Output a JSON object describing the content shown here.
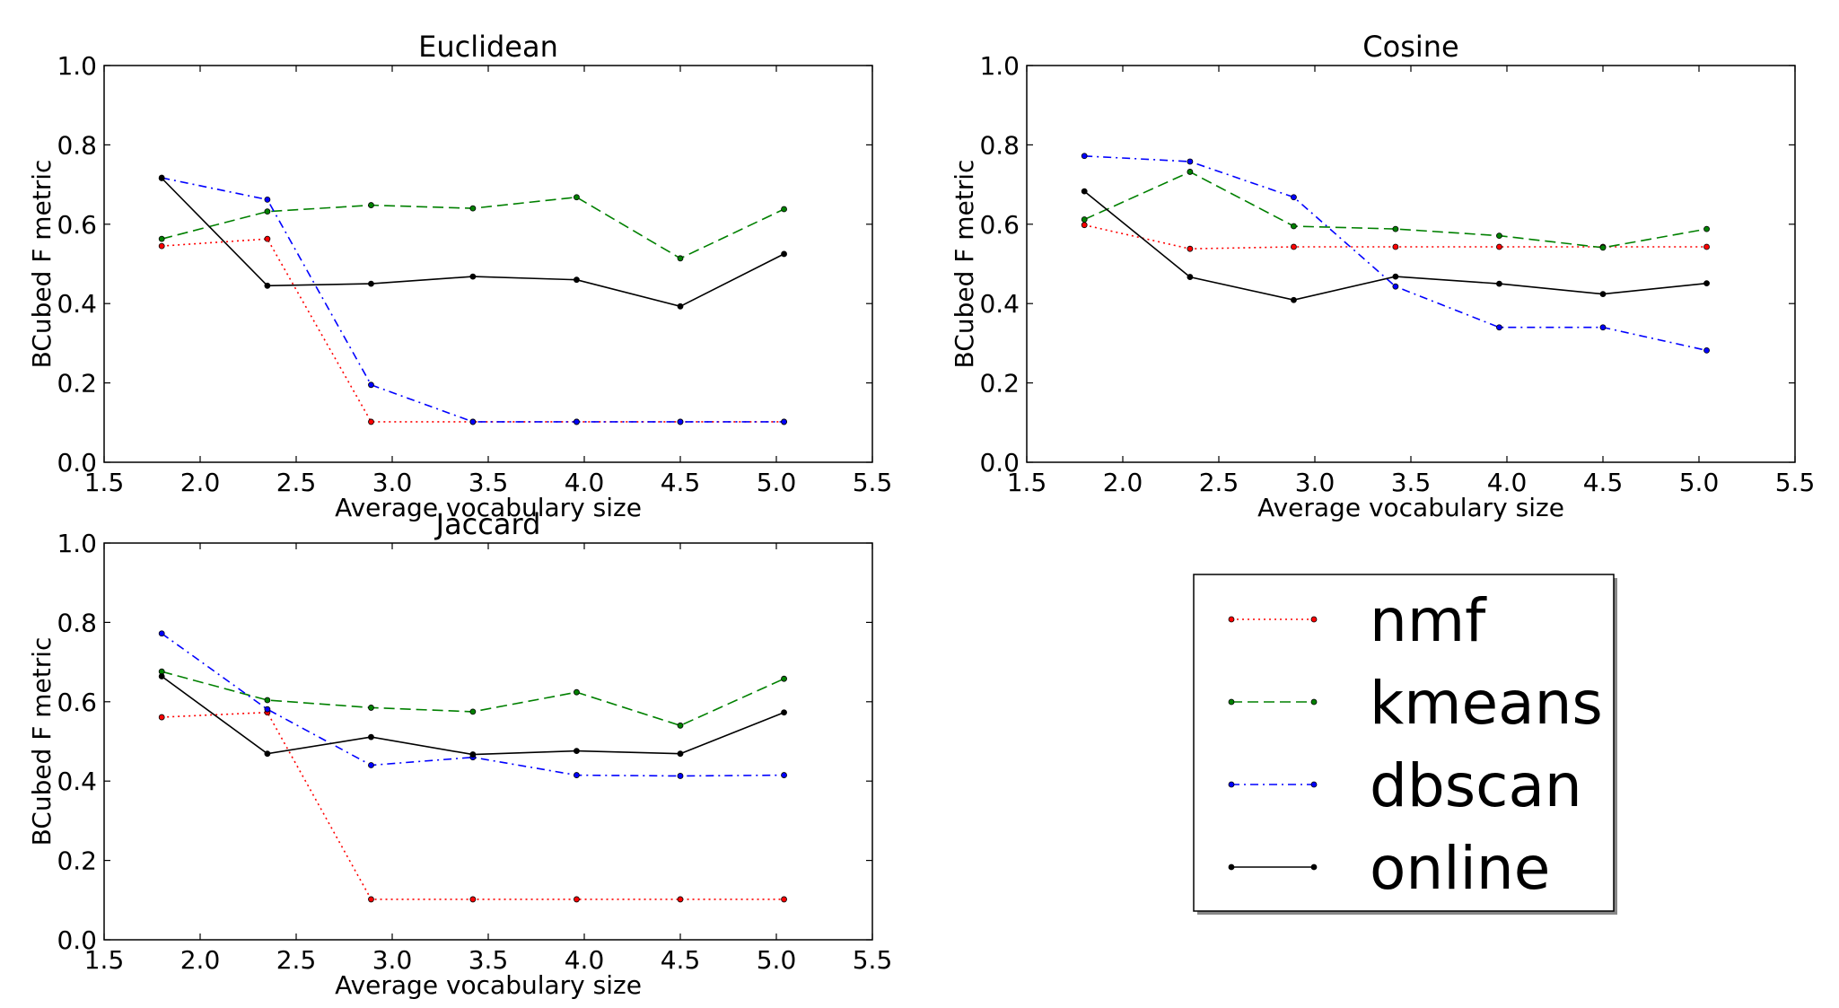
{
  "chart_data": [
    {
      "type": "line",
      "title": "Euclidean",
      "xlabel": "Average vocabulary size",
      "ylabel": "BCubed F metric",
      "xlim": [
        1.5,
        5.5
      ],
      "ylim": [
        0.0,
        1.0
      ],
      "xticks": [
        "1.5",
        "2.0",
        "2.5",
        "3.0",
        "3.5",
        "4.0",
        "4.5",
        "5.0",
        "5.5"
      ],
      "yticks": [
        "0.0",
        "0.2",
        "0.4",
        "0.6",
        "0.8",
        "1.0"
      ],
      "x": [
        1.8,
        2.35,
        2.89,
        3.42,
        3.96,
        4.5,
        5.04
      ],
      "series": [
        {
          "name": "nmf",
          "values": [
            0.545,
            0.563,
            0.102,
            0.102,
            0.102,
            0.102,
            0.102
          ]
        },
        {
          "name": "kmeans",
          "values": [
            0.563,
            0.632,
            0.648,
            0.64,
            0.668,
            0.514,
            0.638
          ]
        },
        {
          "name": "dbscan",
          "values": [
            0.717,
            0.662,
            0.195,
            0.102,
            0.102,
            0.102,
            0.102
          ]
        },
        {
          "name": "online",
          "values": [
            0.716,
            0.445,
            0.45,
            0.468,
            0.46,
            0.393,
            0.525
          ]
        }
      ]
    },
    {
      "type": "line",
      "title": "Cosine",
      "xlabel": "Average vocabulary size",
      "ylabel": "BCubed F metric",
      "xlim": [
        1.5,
        5.5
      ],
      "ylim": [
        0.0,
        1.0
      ],
      "xticks": [
        "1.5",
        "2.0",
        "2.5",
        "3.0",
        "3.5",
        "4.0",
        "4.5",
        "5.0",
        "5.5"
      ],
      "yticks": [
        "0.0",
        "0.2",
        "0.4",
        "0.6",
        "0.8",
        "1.0"
      ],
      "x": [
        1.8,
        2.35,
        2.89,
        3.42,
        3.96,
        4.5,
        5.04
      ],
      "series": [
        {
          "name": "nmf",
          "values": [
            0.598,
            0.538,
            0.543,
            0.543,
            0.543,
            0.543,
            0.543
          ]
        },
        {
          "name": "kmeans",
          "values": [
            0.612,
            0.732,
            0.595,
            0.588,
            0.571,
            0.541,
            0.588
          ]
        },
        {
          "name": "dbscan",
          "values": [
            0.772,
            0.758,
            0.668,
            0.443,
            0.34,
            0.34,
            0.282
          ]
        },
        {
          "name": "online",
          "values": [
            0.683,
            0.467,
            0.409,
            0.468,
            0.45,
            0.424,
            0.451
          ]
        }
      ]
    },
    {
      "type": "line",
      "title": "Jaccard",
      "xlabel": "Average vocabulary size",
      "ylabel": "BCubed F metric",
      "xlim": [
        1.5,
        5.5
      ],
      "ylim": [
        0.0,
        1.0
      ],
      "xticks": [
        "1.5",
        "2.0",
        "2.5",
        "3.0",
        "3.5",
        "4.0",
        "4.5",
        "5.0",
        "5.5"
      ],
      "yticks": [
        "0.0",
        "0.2",
        "0.4",
        "0.6",
        "0.8",
        "1.0"
      ],
      "x": [
        1.8,
        2.35,
        2.89,
        3.42,
        3.96,
        4.5,
        5.04
      ],
      "series": [
        {
          "name": "nmf",
          "values": [
            0.561,
            0.573,
            0.102,
            0.102,
            0.102,
            0.102,
            0.102
          ]
        },
        {
          "name": "kmeans",
          "values": [
            0.676,
            0.604,
            0.585,
            0.575,
            0.624,
            0.54,
            0.658
          ]
        },
        {
          "name": "dbscan",
          "values": [
            0.772,
            0.581,
            0.44,
            0.46,
            0.415,
            0.413,
            0.415
          ]
        },
        {
          "name": "online",
          "values": [
            0.664,
            0.469,
            0.511,
            0.467,
            0.476,
            0.469,
            0.573
          ]
        }
      ]
    }
  ],
  "legend": {
    "placement": "bottom-right",
    "entries": [
      {
        "name": "nmf",
        "color": "#ff0000",
        "dash": "dotted"
      },
      {
        "name": "kmeans",
        "color": "#008000",
        "dash": "dashed"
      },
      {
        "name": "dbscan",
        "color": "#0000ff",
        "dash": "dash-dot"
      },
      {
        "name": "online",
        "color": "#000000",
        "dash": "solid"
      }
    ]
  },
  "series_colors": {
    "nmf": "#ff0000",
    "kmeans": "#008000",
    "dbscan": "#0000ff",
    "online": "#000000"
  }
}
